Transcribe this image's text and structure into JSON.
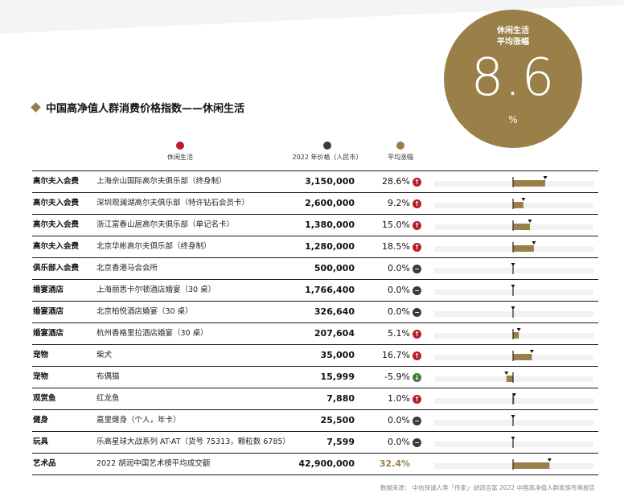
{
  "header": {
    "title": "中国高净值人群消费价格指数——休闲生活",
    "circle": {
      "label_line1": "休闲生活",
      "label_line2": "平均涨幅",
      "value": "8.6",
      "unit": "%"
    }
  },
  "legend": [
    {
      "label": "休闲生活",
      "color": "#b81d2a"
    },
    {
      "label": "2022 年价格（人民币）",
      "color": "#3a3a3a"
    },
    {
      "label": "平均涨幅",
      "color": "#9a8048"
    }
  ],
  "colors": {
    "accent_gold": "#9a8048",
    "up_red": "#b81d2a",
    "flat_dark": "#3a3a3a",
    "down_green": "#3f7d3b",
    "track_gray": "#f2f2f2"
  },
  "chart_data": {
    "type": "table",
    "columns": [
      "休闲生活",
      "2022 年价格（人民币）",
      "平均涨幅"
    ],
    "rows": [
      {
        "category": "高尔夫入会费",
        "item": "上海佘山国际高尔夫俱乐部（终身制）",
        "price": "3,150,000",
        "change_label": "28.6%",
        "change": 28.6,
        "direction": "up"
      },
      {
        "category": "高尔夫入会费",
        "item": "深圳观澜湖高尔夫俱乐部（特许钻石会员卡）",
        "price": "2,600,000",
        "change_label": "9.2%",
        "change": 9.2,
        "direction": "up"
      },
      {
        "category": "高尔夫入会费",
        "item": "浙江富春山居高尔夫俱乐部（单记名卡）",
        "price": "1,380,000",
        "change_label": "15.0%",
        "change": 15.0,
        "direction": "up"
      },
      {
        "category": "高尔夫入会费",
        "item": "北京华彬高尔夫俱乐部（终身制）",
        "price": "1,280,000",
        "change_label": "18.5%",
        "change": 18.5,
        "direction": "up"
      },
      {
        "category": "俱乐部入会费",
        "item": "北京香港马会会所",
        "price": "500,000",
        "change_label": "0.0%",
        "change": 0.0,
        "direction": "flat"
      },
      {
        "category": "婚宴酒店",
        "item": "上海丽思卡尔顿酒店婚宴（30 桌）",
        "price": "1,766,400",
        "change_label": "0.0%",
        "change": 0.0,
        "direction": "flat"
      },
      {
        "category": "婚宴酒店",
        "item": "北京柏悦酒店婚宴（30 桌）",
        "price": "326,640",
        "change_label": "0.0%",
        "change": 0.0,
        "direction": "flat"
      },
      {
        "category": "婚宴酒店",
        "item": "杭州香格里拉酒店婚宴（30 桌）",
        "price": "207,604",
        "change_label": "5.1%",
        "change": 5.1,
        "direction": "up"
      },
      {
        "category": "宠物",
        "item": "柴犬",
        "price": "35,000",
        "change_label": "16.7%",
        "change": 16.7,
        "direction": "up"
      },
      {
        "category": "宠物",
        "item": "布偶猫",
        "price": "15,999",
        "change_label": "-5.9%",
        "change": -5.9,
        "direction": "down"
      },
      {
        "category": "观赏鱼",
        "item": "红龙鱼",
        "price": "7,880",
        "change_label": "1.0%",
        "change": 1.0,
        "direction": "up"
      },
      {
        "category": "健身",
        "item": "嘉里健身（个人，年卡）",
        "price": "25,500",
        "change_label": "0.0%",
        "change": 0.0,
        "direction": "flat"
      },
      {
        "category": "玩具",
        "item": "乐高星球大战系列 AT-AT（货号 75313，颗粒数 6785）",
        "price": "7,599",
        "change_label": "0.0%",
        "change": 0.0,
        "direction": "flat"
      },
      {
        "category": "艺术品",
        "item": "2022 胡润中国艺术榜平均成交额",
        "price": "42,900,000",
        "change_label": "32.4%",
        "change": 32.4,
        "direction": "none",
        "highlight": true
      }
    ]
  },
  "footer": {
    "source": "数据来源：  中信保诚人寿「传家」· 胡润百富 2022 中国高净值人群家族传承报告"
  }
}
